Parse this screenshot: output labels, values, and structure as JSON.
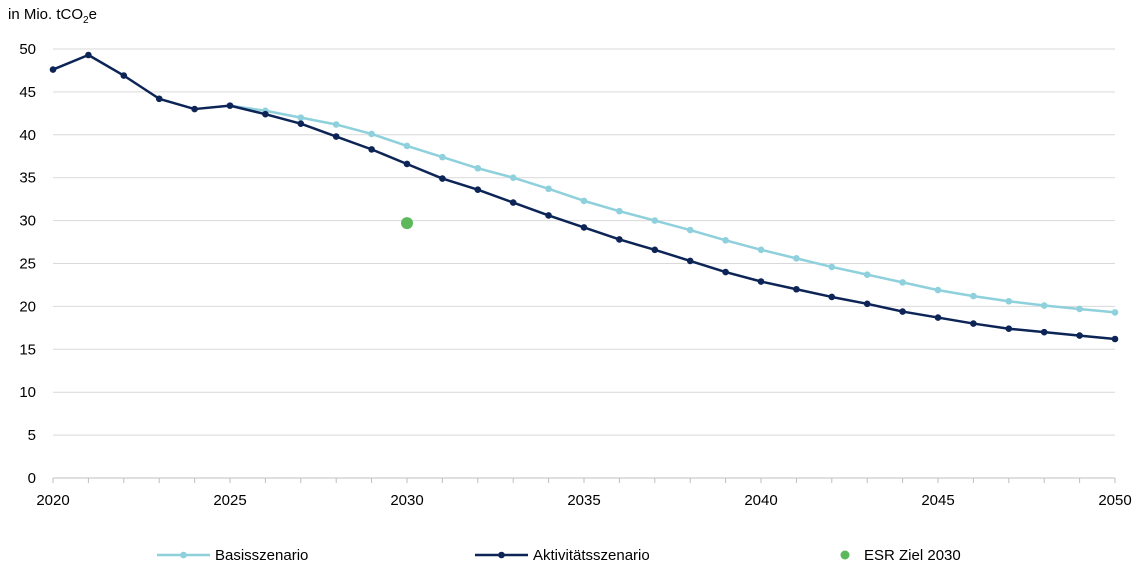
{
  "chart_data": {
    "type": "line",
    "ylabel": "in Mio. tCO2e",
    "ylabel_parts": {
      "prefix": "in Mio. tCO",
      "sub": "2",
      "suffix": "e"
    },
    "ylim": [
      0,
      50
    ],
    "yticks": [
      0,
      5,
      10,
      15,
      20,
      25,
      30,
      35,
      40,
      45,
      50
    ],
    "xlim": [
      2020,
      2050
    ],
    "xticks": [
      2020,
      2025,
      2030,
      2035,
      2040,
      2045,
      2050
    ],
    "grid": "horizontal",
    "legend_position": "bottom",
    "series": [
      {
        "name": "Basisszenario",
        "color": "#8ED0DC",
        "kind": "line",
        "x": [
          2025,
          2026,
          2027,
          2028,
          2029,
          2030,
          2031,
          2032,
          2033,
          2034,
          2035,
          2036,
          2037,
          2038,
          2039,
          2040,
          2041,
          2042,
          2043,
          2044,
          2045,
          2046,
          2047,
          2048,
          2049,
          2050
        ],
        "values": [
          43.4,
          42.8,
          42.0,
          41.2,
          40.1,
          38.7,
          37.4,
          36.1,
          35.0,
          33.7,
          32.3,
          31.1,
          30.0,
          28.9,
          27.7,
          26.6,
          25.6,
          24.6,
          23.7,
          22.8,
          21.9,
          21.2,
          20.6,
          20.1,
          19.7,
          19.3
        ]
      },
      {
        "name": "Aktivitätsszenario",
        "color": "#0D2456",
        "kind": "line",
        "x": [
          2020,
          2021,
          2022,
          2023,
          2024,
          2025,
          2026,
          2027,
          2028,
          2029,
          2030,
          2031,
          2032,
          2033,
          2034,
          2035,
          2036,
          2037,
          2038,
          2039,
          2040,
          2041,
          2042,
          2043,
          2044,
          2045,
          2046,
          2047,
          2048,
          2049,
          2050
        ],
        "values": [
          47.6,
          49.3,
          46.9,
          44.2,
          43.0,
          43.4,
          42.4,
          41.3,
          39.8,
          38.3,
          36.6,
          34.9,
          33.6,
          32.1,
          30.6,
          29.2,
          27.8,
          26.6,
          25.3,
          24.0,
          22.9,
          22.0,
          21.1,
          20.3,
          19.4,
          18.7,
          18.0,
          17.4,
          17.0,
          16.6,
          16.2
        ]
      },
      {
        "name": "ESR Ziel 2030",
        "color": "#5DB85C",
        "kind": "point",
        "x": [
          2030
        ],
        "values": [
          29.7
        ]
      }
    ]
  }
}
